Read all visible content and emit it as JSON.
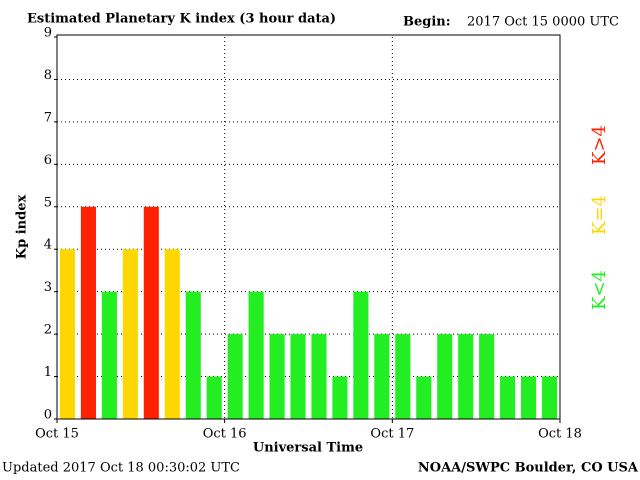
{
  "title": "Estimated Planetary K index (3 hour data)",
  "begin_label": "Begin:",
  "begin_value": "2017 Oct 15 0000 UTC",
  "updated": "Updated 2017 Oct 18 00:30:02 UTC",
  "source": "NOAA/SWPC Boulder, CO USA",
  "chart_data": {
    "type": "bar",
    "y_label": "Kp index",
    "x_label": "Universal Time",
    "values": [
      4,
      5,
      3,
      4,
      5,
      4,
      3,
      1,
      2,
      3,
      2,
      2,
      2,
      1,
      3,
      2,
      2,
      1,
      2,
      2,
      2,
      1,
      1,
      1
    ],
    "colors": [
      "#ffd700",
      "#ff2200",
      "#22ee22",
      "#ffd700",
      "#ff2200",
      "#ffd700",
      "#22ee22",
      "#22ee22",
      "#22ee22",
      "#22ee22",
      "#22ee22",
      "#22ee22",
      "#22ee22",
      "#22ee22",
      "#22ee22",
      "#22ee22",
      "#22ee22",
      "#22ee22",
      "#22ee22",
      "#22ee22",
      "#22ee22",
      "#22ee22",
      "#22ee22",
      "#22ee22"
    ],
    "xlim": [
      0,
      24
    ],
    "xticks": [
      {
        "value": 0,
        "label": "Oct 15"
      },
      {
        "value": 8,
        "label": "Oct 16"
      },
      {
        "value": 16,
        "label": "Oct 17"
      },
      {
        "value": 24,
        "label": "Oct 18"
      }
    ],
    "ylim": [
      0,
      9
    ],
    "yticks": [
      0,
      1,
      2,
      3,
      4,
      5,
      6,
      7,
      8,
      9
    ],
    "grid": true,
    "legend": [
      {
        "name": "K>4",
        "color": "#ff2200"
      },
      {
        "name": "K=4",
        "color": "#ffd700"
      },
      {
        "name": "K<4",
        "color": "#22ee22"
      }
    ]
  }
}
